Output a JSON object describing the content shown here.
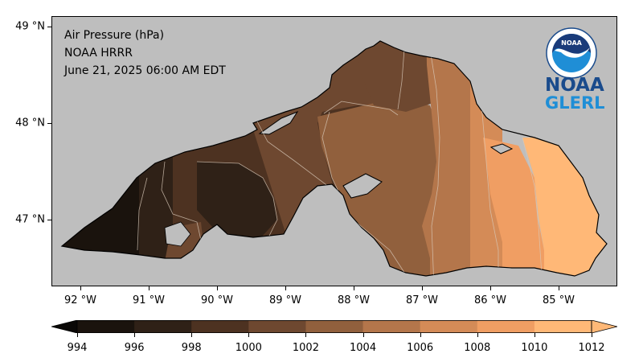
{
  "info": {
    "variable": "Air Pressure (hPa)",
    "model": "NOAA HRRR",
    "valid_time": "June 21, 2025 06:00 AM EDT"
  },
  "map": {
    "region": "Lake Superior",
    "background_color": "#bebebe",
    "lon_ticks": [
      "92 °W",
      "91 °W",
      "90 °W",
      "89 °W",
      "88 °W",
      "87 °W",
      "86 °W",
      "85 °W"
    ],
    "lat_ticks": [
      "49 °N",
      "48 °N",
      "47 °N"
    ]
  },
  "colorbar": {
    "labels": [
      "994",
      "996",
      "998",
      "1000",
      "1002",
      "1004",
      "1006",
      "1008",
      "1010",
      "1012"
    ],
    "colors": [
      "#0a0806",
      "#1a130d",
      "#2f2117",
      "#4d3221",
      "#6e4830",
      "#91603d",
      "#b4764b",
      "#d48b57",
      "#f09e63",
      "#ffb877"
    ],
    "extend": "both"
  },
  "logo": {
    "line1": "NOAA",
    "line2": "GLERL",
    "seal_text": "NOAA"
  }
}
